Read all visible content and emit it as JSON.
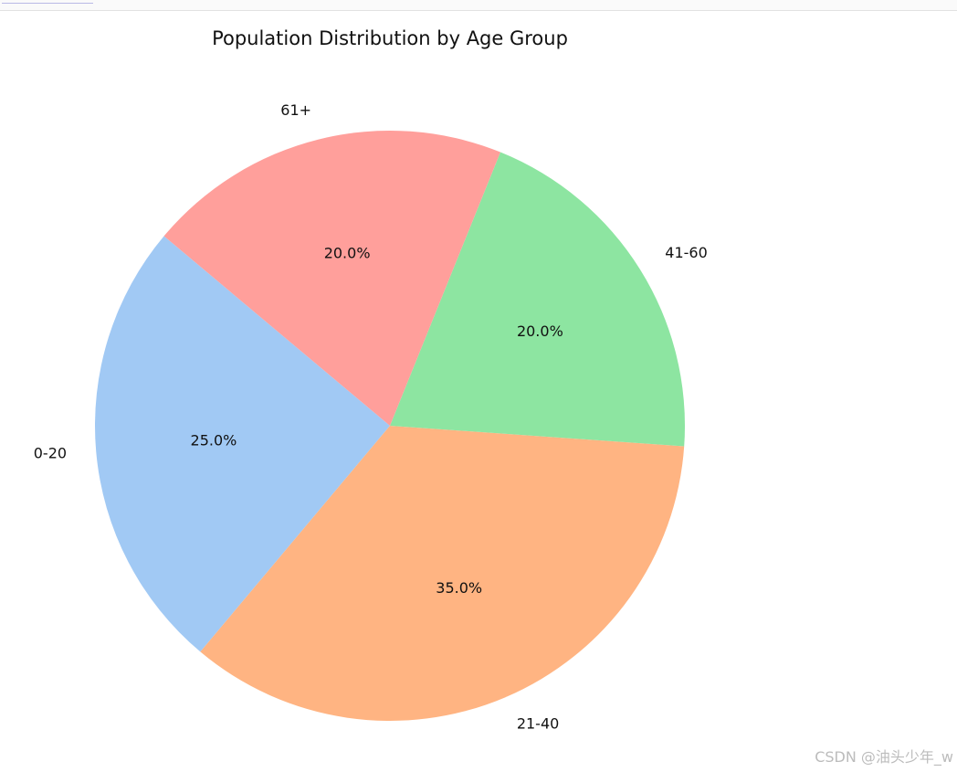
{
  "chart_data": {
    "type": "pie",
    "title": "Population Distribution by Age Group",
    "categories": [
      "0-20",
      "21-40",
      "41-60",
      "61+"
    ],
    "values": [
      25,
      35,
      20,
      20
    ],
    "percent_labels": [
      "25.0%",
      "35.0%",
      "20.0%",
      "20.0%"
    ],
    "colors": [
      "#a1c9f4",
      "#ffb482",
      "#8de5a1",
      "#ff9f9b"
    ],
    "start_angle_deg": 140,
    "direction": "counterclockwise"
  },
  "watermark": "CSDN @油头少年_w"
}
